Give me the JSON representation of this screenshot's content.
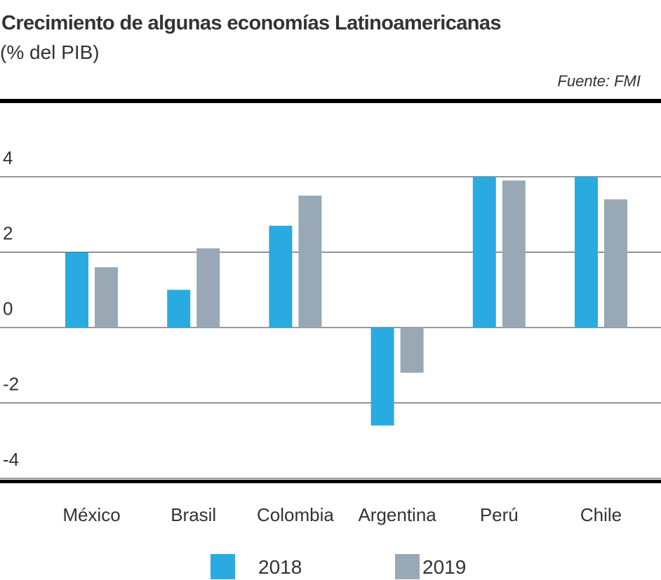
{
  "chart_data": {
    "type": "bar",
    "title": "Crecimiento de algunas economías Latinoamericanas",
    "subtitle": "(% del PIB)",
    "source": "Fuente: FMI",
    "categories": [
      "México",
      "Brasil",
      "Colombia",
      "Argentina",
      "Perú",
      "Chile"
    ],
    "series": [
      {
        "name": "2018",
        "color": "#29abe2",
        "values": [
          2.0,
          1.0,
          2.7,
          -2.6,
          4.0,
          4.0
        ]
      },
      {
        "name": "2019",
        "color": "#98a9b5",
        "values": [
          1.6,
          2.1,
          3.5,
          -1.2,
          3.9,
          3.4
        ]
      }
    ],
    "yticks": [
      "4",
      "2",
      "0",
      "-2",
      "-4"
    ],
    "ytick_values": [
      4,
      2,
      0,
      -2,
      -4
    ],
    "ylim": [
      -4.1,
      6
    ],
    "grid": true,
    "legend": "bottom",
    "xlabel": "",
    "ylabel": ""
  }
}
